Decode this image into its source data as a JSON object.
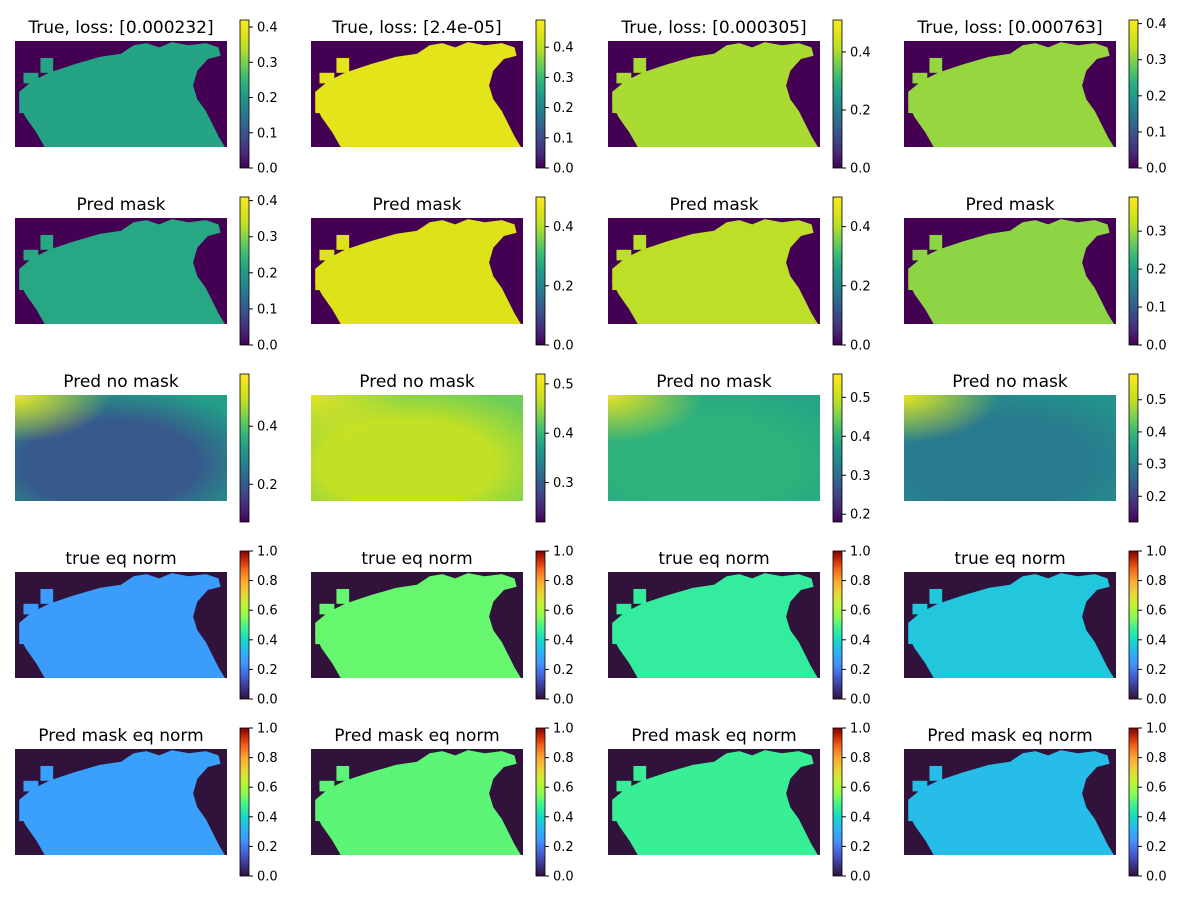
{
  "chart_data": {
    "type": "heatmap",
    "layout_rows": 5,
    "layout_cols": 4,
    "colormaps": {
      "viridis": "viridis",
      "jet": "jet"
    },
    "panels": [
      {
        "title": "True, loss: [0.000232]",
        "cmap": "viridis",
        "masked": true,
        "field_value": 0.22,
        "mask_value": 0.0,
        "vmin": 0.0,
        "vmax": 0.42,
        "ticks": [
          "0.0",
          "0.1",
          "0.2",
          "0.3",
          "0.4"
        ],
        "tick_values": [
          0.0,
          0.1,
          0.2,
          0.3,
          0.4
        ]
      },
      {
        "title": "True, loss: [2.4e-05]",
        "cmap": "viridis",
        "masked": true,
        "field_value": 0.45,
        "mask_value": 0.0,
        "vmin": 0.0,
        "vmax": 0.49,
        "ticks": [
          "0.0",
          "0.1",
          "0.2",
          "0.3",
          "0.4"
        ],
        "tick_values": [
          0.0,
          0.1,
          0.2,
          0.3,
          0.4
        ]
      },
      {
        "title": "True, loss: [0.000305]",
        "cmap": "viridis",
        "masked": true,
        "field_value": 0.4,
        "mask_value": 0.0,
        "vmin": 0.0,
        "vmax": 0.51,
        "ticks": [
          "0.0",
          "0.2",
          "0.4"
        ],
        "tick_values": [
          0.0,
          0.2,
          0.4
        ]
      },
      {
        "title": "True, loss: [0.000763]",
        "cmap": "viridis",
        "masked": true,
        "field_value": 0.31,
        "mask_value": 0.0,
        "vmin": 0.0,
        "vmax": 0.41,
        "ticks": [
          "0.0",
          "0.1",
          "0.2",
          "0.3",
          "0.4"
        ],
        "tick_values": [
          0.0,
          0.1,
          0.2,
          0.3,
          0.4
        ]
      },
      {
        "title": "Pred mask",
        "cmap": "viridis",
        "masked": true,
        "field_value": 0.22,
        "mask_value": 0.0,
        "vmin": 0.0,
        "vmax": 0.41,
        "ticks": [
          "0.0",
          "0.1",
          "0.2",
          "0.3",
          "0.4"
        ],
        "tick_values": [
          0.0,
          0.1,
          0.2,
          0.3,
          0.4
        ]
      },
      {
        "title": "Pred mask",
        "cmap": "viridis",
        "masked": true,
        "field_value": 0.45,
        "mask_value": 0.0,
        "vmin": 0.0,
        "vmax": 0.5,
        "ticks": [
          "0.0",
          "0.2",
          "0.4"
        ],
        "tick_values": [
          0.0,
          0.2,
          0.4
        ]
      },
      {
        "title": "Pred mask",
        "cmap": "viridis",
        "masked": true,
        "field_value": 0.41,
        "mask_value": 0.0,
        "vmin": 0.0,
        "vmax": 0.5,
        "ticks": [
          "0.0",
          "0.2",
          "0.4"
        ],
        "tick_values": [
          0.0,
          0.2,
          0.4
        ]
      },
      {
        "title": "Pred mask",
        "cmap": "viridis",
        "masked": true,
        "field_value": 0.29,
        "mask_value": 0.0,
        "vmin": 0.0,
        "vmax": 0.39,
        "ticks": [
          "0.0",
          "0.1",
          "0.2",
          "0.3"
        ],
        "tick_values": [
          0.0,
          0.1,
          0.2,
          0.3
        ]
      },
      {
        "title": "Pred no mask",
        "cmap": "viridis",
        "masked": false,
        "field_value": 0.2,
        "outer_value": 0.33,
        "corner_value": 0.56,
        "vmin": 0.07,
        "vmax": 0.58,
        "ticks": [
          "0.2",
          "0.4"
        ],
        "tick_values": [
          0.2,
          0.4
        ]
      },
      {
        "title": "Pred no mask",
        "cmap": "viridis",
        "masked": false,
        "field_value": 0.47,
        "outer_value": 0.43,
        "corner_value": 0.5,
        "vmin": 0.22,
        "vmax": 0.52,
        "ticks": [
          "0.3",
          "0.4",
          "0.5"
        ],
        "tick_values": [
          0.3,
          0.4,
          0.5
        ]
      },
      {
        "title": "Pred no mask",
        "cmap": "viridis",
        "masked": false,
        "field_value": 0.4,
        "outer_value": 0.38,
        "corner_value": 0.54,
        "vmin": 0.18,
        "vmax": 0.56,
        "ticks": [
          "0.2",
          "0.3",
          "0.4",
          "0.5"
        ],
        "tick_values": [
          0.2,
          0.3,
          0.4,
          0.5
        ]
      },
      {
        "title": "Pred no mask",
        "cmap": "viridis",
        "masked": false,
        "field_value": 0.29,
        "outer_value": 0.33,
        "corner_value": 0.55,
        "vmin": 0.12,
        "vmax": 0.58,
        "ticks": [
          "0.2",
          "0.3",
          "0.4",
          "0.5"
        ],
        "tick_values": [
          0.2,
          0.3,
          0.4,
          0.5
        ]
      },
      {
        "title": "true eq norm",
        "cmap": "jet",
        "masked": true,
        "field_value": 0.26,
        "mask_value": 0.0,
        "vmin": 0.0,
        "vmax": 1.0,
        "ticks": [
          "0.0",
          "0.2",
          "0.4",
          "0.6",
          "0.8",
          "1.0"
        ],
        "tick_values": [
          0.0,
          0.2,
          0.4,
          0.6,
          0.8,
          1.0
        ]
      },
      {
        "title": "true eq norm",
        "cmap": "jet",
        "masked": true,
        "field_value": 0.52,
        "mask_value": 0.0,
        "vmin": 0.0,
        "vmax": 1.0,
        "ticks": [
          "0.0",
          "0.2",
          "0.4",
          "0.6",
          "0.8",
          "1.0"
        ],
        "tick_values": [
          0.0,
          0.2,
          0.4,
          0.6,
          0.8,
          1.0
        ]
      },
      {
        "title": "true eq norm",
        "cmap": "jet",
        "masked": true,
        "field_value": 0.46,
        "mask_value": 0.0,
        "vmin": 0.0,
        "vmax": 1.0,
        "ticks": [
          "0.0",
          "0.2",
          "0.4",
          "0.6",
          "0.8",
          "1.0"
        ],
        "tick_values": [
          0.0,
          0.2,
          0.4,
          0.6,
          0.8,
          1.0
        ]
      },
      {
        "title": "true eq norm",
        "cmap": "jet",
        "masked": true,
        "field_value": 0.36,
        "mask_value": 0.0,
        "vmin": 0.0,
        "vmax": 1.0,
        "ticks": [
          "0.0",
          "0.2",
          "0.4",
          "0.6",
          "0.8",
          "1.0"
        ],
        "tick_values": [
          0.0,
          0.2,
          0.4,
          0.6,
          0.8,
          1.0
        ]
      },
      {
        "title": "Pred mask eq norm",
        "cmap": "jet",
        "masked": true,
        "field_value": 0.27,
        "mask_value": 0.0,
        "vmin": 0.0,
        "vmax": 1.0,
        "ticks": [
          "0.0",
          "0.2",
          "0.4",
          "0.6",
          "0.8",
          "1.0"
        ],
        "tick_values": [
          0.0,
          0.2,
          0.4,
          0.6,
          0.8,
          1.0
        ]
      },
      {
        "title": "Pred mask eq norm",
        "cmap": "jet",
        "masked": true,
        "field_value": 0.51,
        "mask_value": 0.0,
        "vmin": 0.0,
        "vmax": 1.0,
        "ticks": [
          "0.0",
          "0.2",
          "0.4",
          "0.6",
          "0.8",
          "1.0"
        ],
        "tick_values": [
          0.0,
          0.2,
          0.4,
          0.6,
          0.8,
          1.0
        ]
      },
      {
        "title": "Pred mask eq norm",
        "cmap": "jet",
        "masked": true,
        "field_value": 0.47,
        "mask_value": 0.0,
        "vmin": 0.0,
        "vmax": 1.0,
        "ticks": [
          "0.0",
          "0.2",
          "0.4",
          "0.6",
          "0.8",
          "1.0"
        ],
        "tick_values": [
          0.0,
          0.2,
          0.4,
          0.6,
          0.8,
          1.0
        ]
      },
      {
        "title": "Pred mask eq norm",
        "cmap": "jet",
        "masked": true,
        "field_value": 0.34,
        "mask_value": 0.0,
        "vmin": 0.0,
        "vmax": 1.0,
        "ticks": [
          "0.0",
          "0.2",
          "0.4",
          "0.6",
          "0.8",
          "1.0"
        ],
        "tick_values": [
          0.0,
          0.2,
          0.4,
          0.6,
          0.8,
          1.0
        ]
      }
    ]
  }
}
